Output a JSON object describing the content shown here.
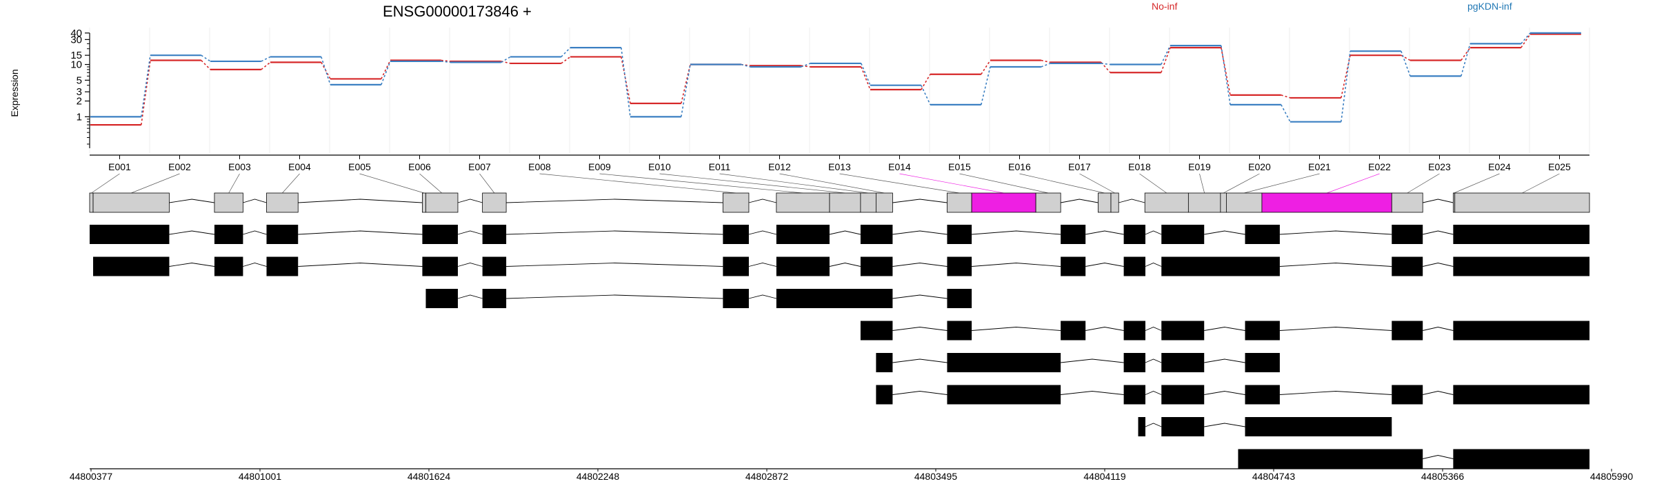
{
  "title": "ENSG00000173846 +",
  "ylabel": "Expression",
  "legend": [
    {
      "label": "No-inf",
      "color": "#d62728"
    },
    {
      "label": "pgKDN-inf",
      "color": "#1f77b4"
    }
  ],
  "colors": {
    "no_inf": "#d62728",
    "pgkdn_inf": "#3a7fc2",
    "highlight": "#ee1fe3",
    "exon_gray": "#d0d0d0"
  },
  "chart_data": {
    "type": "line",
    "title": "ENSG00000173846 +",
    "ylabel": "Expression",
    "y_scale": "log",
    "y_ticks": [
      1,
      2,
      3,
      5,
      10,
      15,
      30,
      40
    ],
    "ylim": [
      0.25,
      45
    ],
    "grid": "vertical",
    "legend_placement": "top",
    "categories": [
      "E001",
      "E002",
      "E003",
      "E004",
      "E005",
      "E006",
      "E007",
      "E008",
      "E009",
      "E010",
      "E011",
      "E012",
      "E013",
      "E014",
      "E015",
      "E016",
      "E017",
      "E018",
      "E019",
      "E020",
      "E021",
      "E022",
      "E023",
      "E024",
      "E025"
    ],
    "series": [
      {
        "name": "No-inf",
        "color": "#d62728",
        "values": [
          0.7,
          12,
          8,
          11,
          5.3,
          12,
          11.5,
          10.5,
          14,
          1.8,
          10,
          9.5,
          9,
          3.3,
          6.5,
          12,
          11,
          7,
          21,
          2.6,
          2.3,
          15,
          12,
          21,
          38
        ]
      },
      {
        "name": "pgKDN-inf",
        "color": "#1f77b4",
        "values": [
          1.0,
          15,
          11.5,
          14,
          4.1,
          11.5,
          11,
          14,
          21,
          1.0,
          10,
          9,
          10.5,
          4.0,
          1.7,
          9,
          10.5,
          10,
          23,
          1.7,
          0.8,
          18,
          6,
          25,
          40
        ]
      }
    ],
    "genomic_axis": {
      "range": [
        44800377,
        44805990
      ],
      "tick_labels": [
        "44800377",
        "44801001",
        "44801624",
        "44802248",
        "44802872",
        "44803495",
        "44804119",
        "44804743",
        "44805366",
        "44805990"
      ]
    },
    "exon_bins": [
      {
        "id": "E001",
        "start": 44800377,
        "end": 44800390,
        "highlight": false
      },
      {
        "id": "E002",
        "start": 44800390,
        "end": 44800675,
        "highlight": false
      },
      {
        "id": "E003",
        "start": 44800844,
        "end": 44800951,
        "highlight": false
      },
      {
        "id": "E004",
        "start": 44801039,
        "end": 44801157,
        "highlight": false
      },
      {
        "id": "E005",
        "start": 44801622,
        "end": 44801635,
        "highlight": false
      },
      {
        "id": "E006",
        "start": 44801635,
        "end": 44801755,
        "highlight": false
      },
      {
        "id": "E007",
        "start": 44801847,
        "end": 44801936,
        "highlight": false
      },
      {
        "id": "E008",
        "start": 44802747,
        "end": 44802844,
        "highlight": false
      },
      {
        "id": "E009",
        "start": 44802947,
        "end": 44803146,
        "highlight": false
      },
      {
        "id": "E010",
        "start": 44803146,
        "end": 44803262,
        "highlight": false
      },
      {
        "id": "E011",
        "start": 44803262,
        "end": 44803320,
        "highlight": false
      },
      {
        "id": "E012",
        "start": 44803320,
        "end": 44803382,
        "highlight": false
      },
      {
        "id": "E013",
        "start": 44803586,
        "end": 44803678,
        "highlight": false
      },
      {
        "id": "E014",
        "start": 44803678,
        "end": 44803918,
        "highlight": true
      },
      {
        "id": "E015",
        "start": 44803918,
        "end": 44804011,
        "highlight": false
      },
      {
        "id": "E016",
        "start": 44804151,
        "end": 44804199,
        "highlight": false
      },
      {
        "id": "E017",
        "start": 44804199,
        "end": 44804228,
        "highlight": false
      },
      {
        "id": "E018",
        "start": 44804326,
        "end": 44804489,
        "highlight": false
      },
      {
        "id": "E019",
        "start": 44804489,
        "end": 44804609,
        "highlight": false
      },
      {
        "id": "E020",
        "start": 44804609,
        "end": 44804631,
        "highlight": false
      },
      {
        "id": "E021",
        "start": 44804631,
        "end": 44804764,
        "highlight": false
      },
      {
        "id": "E022",
        "start": 44804764,
        "end": 44805250,
        "highlight": true
      },
      {
        "id": "E023",
        "start": 44805250,
        "end": 44805366,
        "highlight": false
      },
      {
        "id": "E024",
        "start": 44805480,
        "end": 44805486,
        "highlight": false
      },
      {
        "id": "E025",
        "start": 44805486,
        "end": 44805990,
        "highlight": false
      }
    ],
    "transcripts": [
      [
        [
          44800377,
          44800675
        ],
        [
          44800844,
          44800951
        ],
        [
          44801039,
          44801157
        ],
        [
          44801622,
          44801755
        ],
        [
          44801847,
          44801936
        ],
        [
          44802747,
          44802844
        ],
        [
          44802947,
          44803146
        ],
        [
          44803262,
          44803382
        ],
        [
          44803586,
          44803678
        ],
        [
          44804011,
          44804104
        ],
        [
          44804247,
          44804328
        ],
        [
          44804388,
          44804548
        ],
        [
          44804701,
          44804831
        ],
        [
          44805250,
          44805366
        ],
        [
          44805480,
          44805990
        ]
      ],
      [
        [
          44800390,
          44800675
        ],
        [
          44800844,
          44800951
        ],
        [
          44801039,
          44801157
        ],
        [
          44801622,
          44801755
        ],
        [
          44801847,
          44801936
        ],
        [
          44802747,
          44802844
        ],
        [
          44802947,
          44803146
        ],
        [
          44803262,
          44803382
        ],
        [
          44803586,
          44803678
        ],
        [
          44804011,
          44804104
        ],
        [
          44804247,
          44804328
        ],
        [
          44804388,
          44804831
        ],
        [
          44805250,
          44805366
        ],
        [
          44805480,
          44805990
        ]
      ],
      [
        [
          44801635,
          44801755
        ],
        [
          44801847,
          44801936
        ],
        [
          44802747,
          44802844
        ],
        [
          44802947,
          44803382
        ],
        [
          44803586,
          44803678
        ]
      ],
      [
        [
          44803262,
          44803382
        ],
        [
          44803586,
          44803678
        ],
        [
          44804011,
          44804104
        ],
        [
          44804247,
          44804328
        ],
        [
          44804388,
          44804548
        ],
        [
          44804701,
          44804831
        ],
        [
          44805250,
          44805366
        ],
        [
          44805480,
          44805990
        ]
      ],
      [
        [
          44803320,
          44803382
        ],
        [
          44803586,
          44804011
        ],
        [
          44804247,
          44804328
        ],
        [
          44804388,
          44804548
        ],
        [
          44804701,
          44804831
        ]
      ],
      [
        [
          44803320,
          44803382
        ],
        [
          44803586,
          44804011
        ],
        [
          44804247,
          44804328
        ],
        [
          44804388,
          44804548
        ],
        [
          44804701,
          44804831
        ],
        [
          44805250,
          44805366
        ],
        [
          44805480,
          44805990
        ]
      ],
      [
        [
          44804301,
          44804328
        ],
        [
          44804388,
          44804548
        ],
        [
          44804701,
          44805250
        ]
      ],
      [
        [
          44804675,
          44805366
        ],
        [
          44805480,
          44805990
        ]
      ]
    ]
  }
}
